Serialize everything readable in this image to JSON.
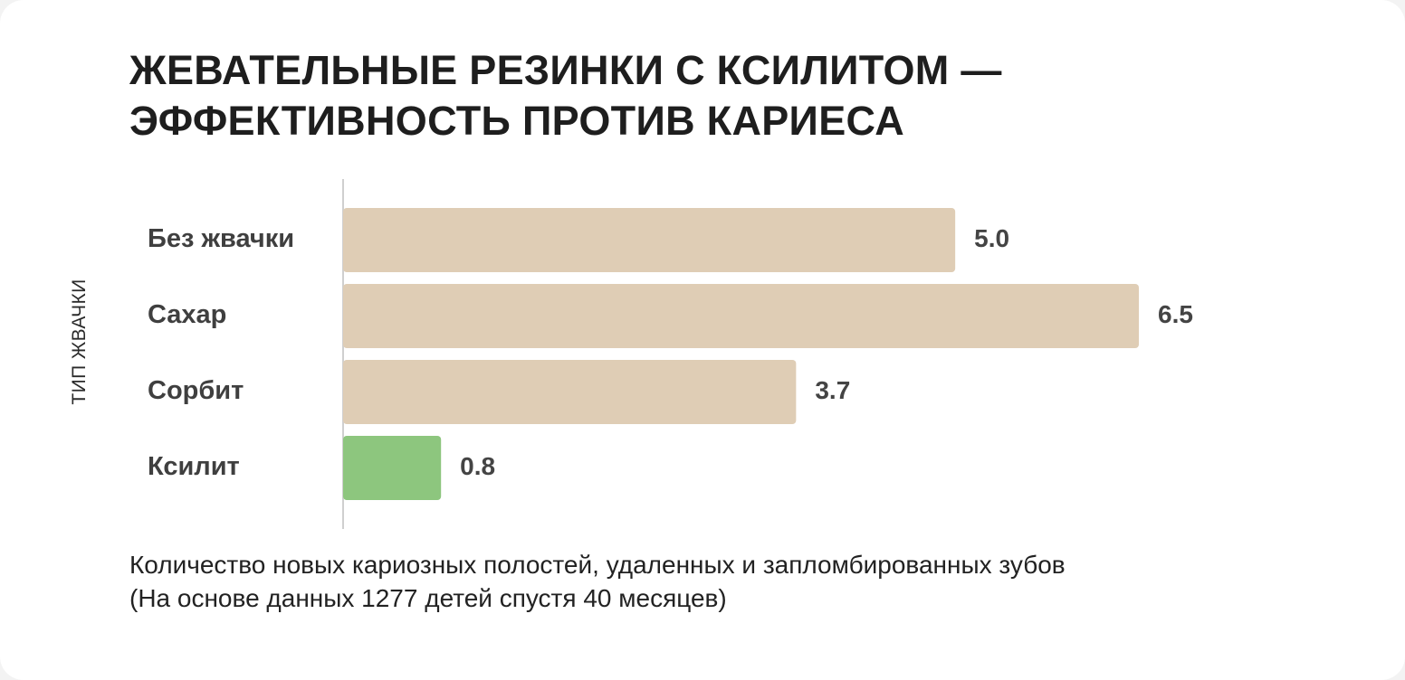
{
  "chart_data": {
    "type": "bar",
    "orientation": "horizontal",
    "title": "ЖЕВАТЕЛЬНЫЕ РЕЗИНКИ С КСИЛИТОМ — ЭФФЕКТИВНОСТЬ ПРОТИВ КАРИЕСА",
    "ylabel": "ТИП ЖВАЧКИ",
    "xlabel": "Количество новых кариозных полостей, удаленных и запломбированных зубов",
    "xlabel_note": "(На основе данных 1277 детей спустя 40 месяцев)",
    "categories": [
      "Без жвачки",
      "Сахар",
      "Сорбит",
      "Ксилит"
    ],
    "values": [
      5.0,
      6.5,
      3.7,
      0.8
    ],
    "value_labels": [
      "5.0",
      "6.5",
      "3.7",
      "0.8"
    ],
    "bar_colors": [
      "#dfcdb5",
      "#dfcdb5",
      "#dfcdb5",
      "#8dc67e"
    ],
    "xlim": [
      0,
      6.5
    ],
    "grid": false,
    "legend": "none"
  }
}
